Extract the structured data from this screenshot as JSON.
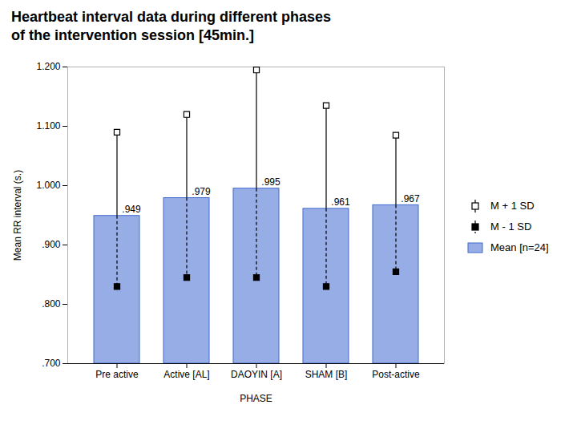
{
  "chart_data": {
    "type": "bar",
    "title": "Heartbeat interval data during different phases",
    "subtitle": "of the intervention session [45min.]",
    "categories": [
      "Pre active",
      "Active [AL]",
      "DAOYIN [A]",
      "SHAM [B]",
      "Post-active"
    ],
    "series": [
      {
        "name": "Mean [n=24]",
        "type": "bar",
        "values": [
          0.949,
          0.979,
          0.995,
          0.961,
          0.967
        ],
        "value_labels": [
          ".949",
          ".979",
          ".995",
          ".961",
          ".967"
        ]
      },
      {
        "name": "M + 1 SD",
        "type": "scatter",
        "marker": "open_square",
        "line_style": "solid",
        "values": [
          1.09,
          1.12,
          1.195,
          1.135,
          1.085
        ]
      },
      {
        "name": "M - 1 SD",
        "type": "scatter",
        "marker": "square",
        "line_style": "dashed",
        "values": [
          0.83,
          0.845,
          0.845,
          0.83,
          0.855
        ]
      }
    ],
    "xlabel": "PHASE",
    "ylabel": "Mean RR interval (s.)",
    "ylim": [
      0.7,
      1.2
    ],
    "yticks": [
      {
        "value": 0.7,
        "label": ".700"
      },
      {
        "value": 0.8,
        "label": ".800"
      },
      {
        "value": 0.9,
        "label": ".900"
      },
      {
        "value": 1.0,
        "label": "1.000"
      },
      {
        "value": 1.1,
        "label": "1.100"
      },
      {
        "value": 1.2,
        "label": "1.200"
      }
    ],
    "data_labels": true,
    "legend": "right",
    "grid": false
  }
}
